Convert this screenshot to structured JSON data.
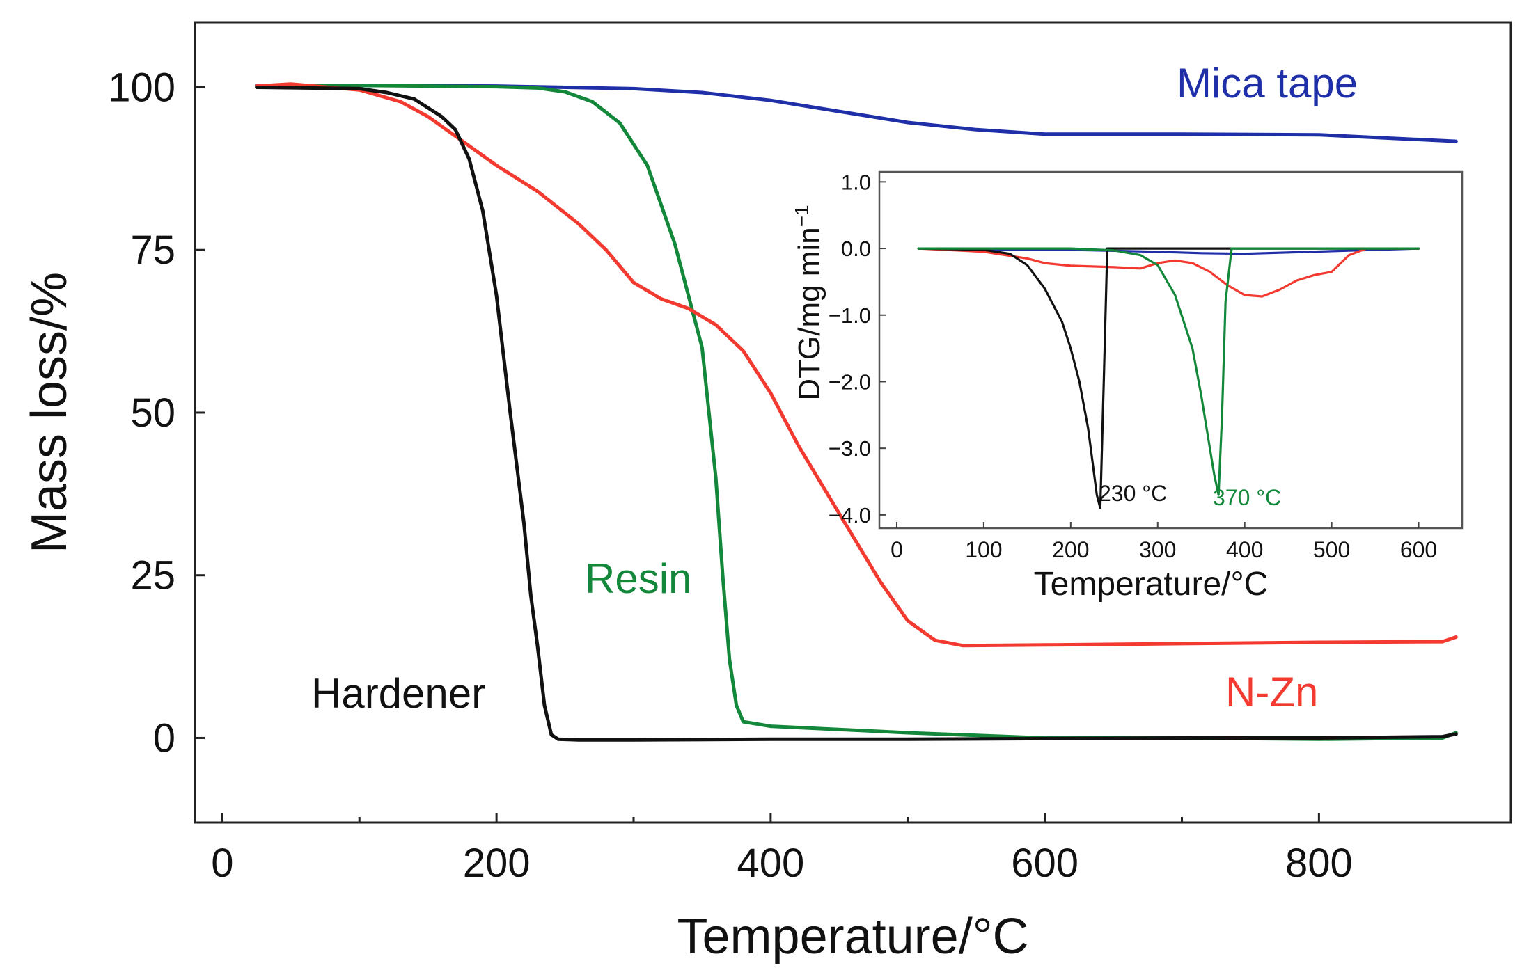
{
  "chart_data": [
    {
      "type": "line",
      "title": "",
      "xlabel": "Temperature/°C",
      "ylabel": "Mass loss/%",
      "xlim": [
        -20,
        940
      ],
      "ylim": [
        -13,
        110
      ],
      "xticks": [
        0,
        200,
        400,
        600,
        800
      ],
      "yticks": [
        0,
        25,
        50,
        75,
        100
      ],
      "grid": false,
      "series": [
        {
          "name": "Mica tape",
          "color": "#1f2fa8",
          "x": [
            25,
            100,
            200,
            300,
            350,
            400,
            450,
            500,
            550,
            600,
            700,
            800,
            900
          ],
          "y": [
            100.3,
            100.3,
            100.2,
            99.8,
            99.2,
            98.0,
            96.3,
            94.6,
            93.5,
            92.8,
            92.8,
            92.7,
            91.7
          ]
        },
        {
          "name": "Resin",
          "color": "#13873a",
          "x": [
            25,
            100,
            200,
            230,
            250,
            270,
            290,
            310,
            330,
            340,
            350,
            360,
            365,
            370,
            375,
            380,
            400,
            500,
            600,
            700,
            800,
            890,
            900
          ],
          "y": [
            100.2,
            100.3,
            100.1,
            99.9,
            99.3,
            97.8,
            94.5,
            88.0,
            76.0,
            68.0,
            60.0,
            40.0,
            25.0,
            12.0,
            5.0,
            2.5,
            1.8,
            0.8,
            0.0,
            0.0,
            -0.2,
            0.0,
            0.8
          ]
        },
        {
          "name": "N-Zn",
          "color": "#f23a30",
          "x": [
            25,
            50,
            100,
            130,
            150,
            170,
            200,
            230,
            260,
            280,
            300,
            320,
            340,
            360,
            380,
            400,
            420,
            440,
            460,
            480,
            500,
            520,
            540,
            600,
            700,
            800,
            890,
            900
          ],
          "y": [
            100.2,
            100.5,
            99.6,
            97.8,
            95.5,
            92.5,
            88.0,
            84.0,
            79.0,
            75.0,
            70.0,
            67.5,
            66.0,
            63.5,
            59.5,
            53.0,
            45.0,
            38.0,
            31.0,
            24.0,
            18.0,
            15.0,
            14.2,
            14.3,
            14.5,
            14.7,
            14.8,
            15.5
          ]
        },
        {
          "name": "Hardener",
          "color": "#111111",
          "x": [
            25,
            100,
            120,
            140,
            160,
            170,
            180,
            190,
            200,
            210,
            220,
            225,
            230,
            235,
            240,
            245,
            260,
            300,
            400,
            500,
            600,
            700,
            800,
            890,
            900
          ],
          "y": [
            100.0,
            99.8,
            99.2,
            98.2,
            95.5,
            93.5,
            89.0,
            81.0,
            68.0,
            50.0,
            33.0,
            22.0,
            14.0,
            5.0,
            0.5,
            -0.2,
            -0.3,
            -0.3,
            -0.2,
            -0.2,
            -0.1,
            0.0,
            0.0,
            0.2,
            0.6
          ]
        }
      ],
      "annotations": [
        {
          "text": "Mica tape",
          "color": "#1f2fa8"
        },
        {
          "text": "Resin",
          "color": "#13873a"
        },
        {
          "text": "N-Zn",
          "color": "#f23a30"
        },
        {
          "text": "Hardener",
          "color": "#111111"
        }
      ]
    },
    {
      "type": "line",
      "title": "",
      "xlabel": "Temperature/°C",
      "ylabel_main": "DTG/mg min",
      "ylabel_sup": "−1",
      "xlim": [
        -20,
        650
      ],
      "ylim": [
        -4.2,
        1.15
      ],
      "xticks": [
        0,
        100,
        200,
        300,
        400,
        500,
        600
      ],
      "yticks": [
        1.0,
        0.0,
        -1.0,
        -2.0,
        -3.0,
        -4.0
      ],
      "ytick_labels": [
        "1.0",
        "0.0",
        "−1.0",
        "−2.0",
        "−3.0",
        "−4.0"
      ],
      "grid": false,
      "series": [
        {
          "name": "Mica tape",
          "color": "#1f2fa8",
          "x": [
            25,
            100,
            200,
            300,
            350,
            400,
            500,
            600
          ],
          "y": [
            0.0,
            -0.02,
            -0.02,
            -0.05,
            -0.07,
            -0.08,
            -0.04,
            0.0
          ]
        },
        {
          "name": "N-Zn",
          "color": "#f23a30",
          "x": [
            25,
            100,
            150,
            170,
            200,
            250,
            280,
            300,
            320,
            340,
            360,
            380,
            400,
            420,
            440,
            460,
            480,
            500,
            520,
            540,
            600
          ],
          "y": [
            0.0,
            -0.05,
            -0.15,
            -0.22,
            -0.26,
            -0.28,
            -0.3,
            -0.22,
            -0.18,
            -0.22,
            -0.35,
            -0.55,
            -0.7,
            -0.72,
            -0.62,
            -0.48,
            -0.4,
            -0.35,
            -0.1,
            0.0,
            0.0
          ]
        },
        {
          "name": "Hardener",
          "color": "#111111",
          "x": [
            25,
            100,
            130,
            150,
            170,
            190,
            200,
            210,
            220,
            225,
            230,
            234,
            238,
            242,
            250,
            300,
            400,
            600
          ],
          "y": [
            0.0,
            -0.02,
            -0.08,
            -0.25,
            -0.6,
            -1.1,
            -1.5,
            -2.0,
            -2.7,
            -3.2,
            -3.7,
            -3.9,
            -2.0,
            0.0,
            0.0,
            0.0,
            0.0,
            0.0
          ],
          "peak_label": "230 °C"
        },
        {
          "name": "Resin",
          "color": "#13873a",
          "x": [
            25,
            200,
            250,
            280,
            300,
            320,
            340,
            350,
            360,
            365,
            370,
            374,
            378,
            385,
            400,
            500,
            600
          ],
          "y": [
            0.0,
            0.0,
            -0.03,
            -0.1,
            -0.25,
            -0.7,
            -1.5,
            -2.2,
            -3.0,
            -3.4,
            -3.7,
            -2.5,
            -0.8,
            0.0,
            0.0,
            0.0,
            0.0
          ],
          "peak_label": "370 °C"
        }
      ]
    }
  ]
}
